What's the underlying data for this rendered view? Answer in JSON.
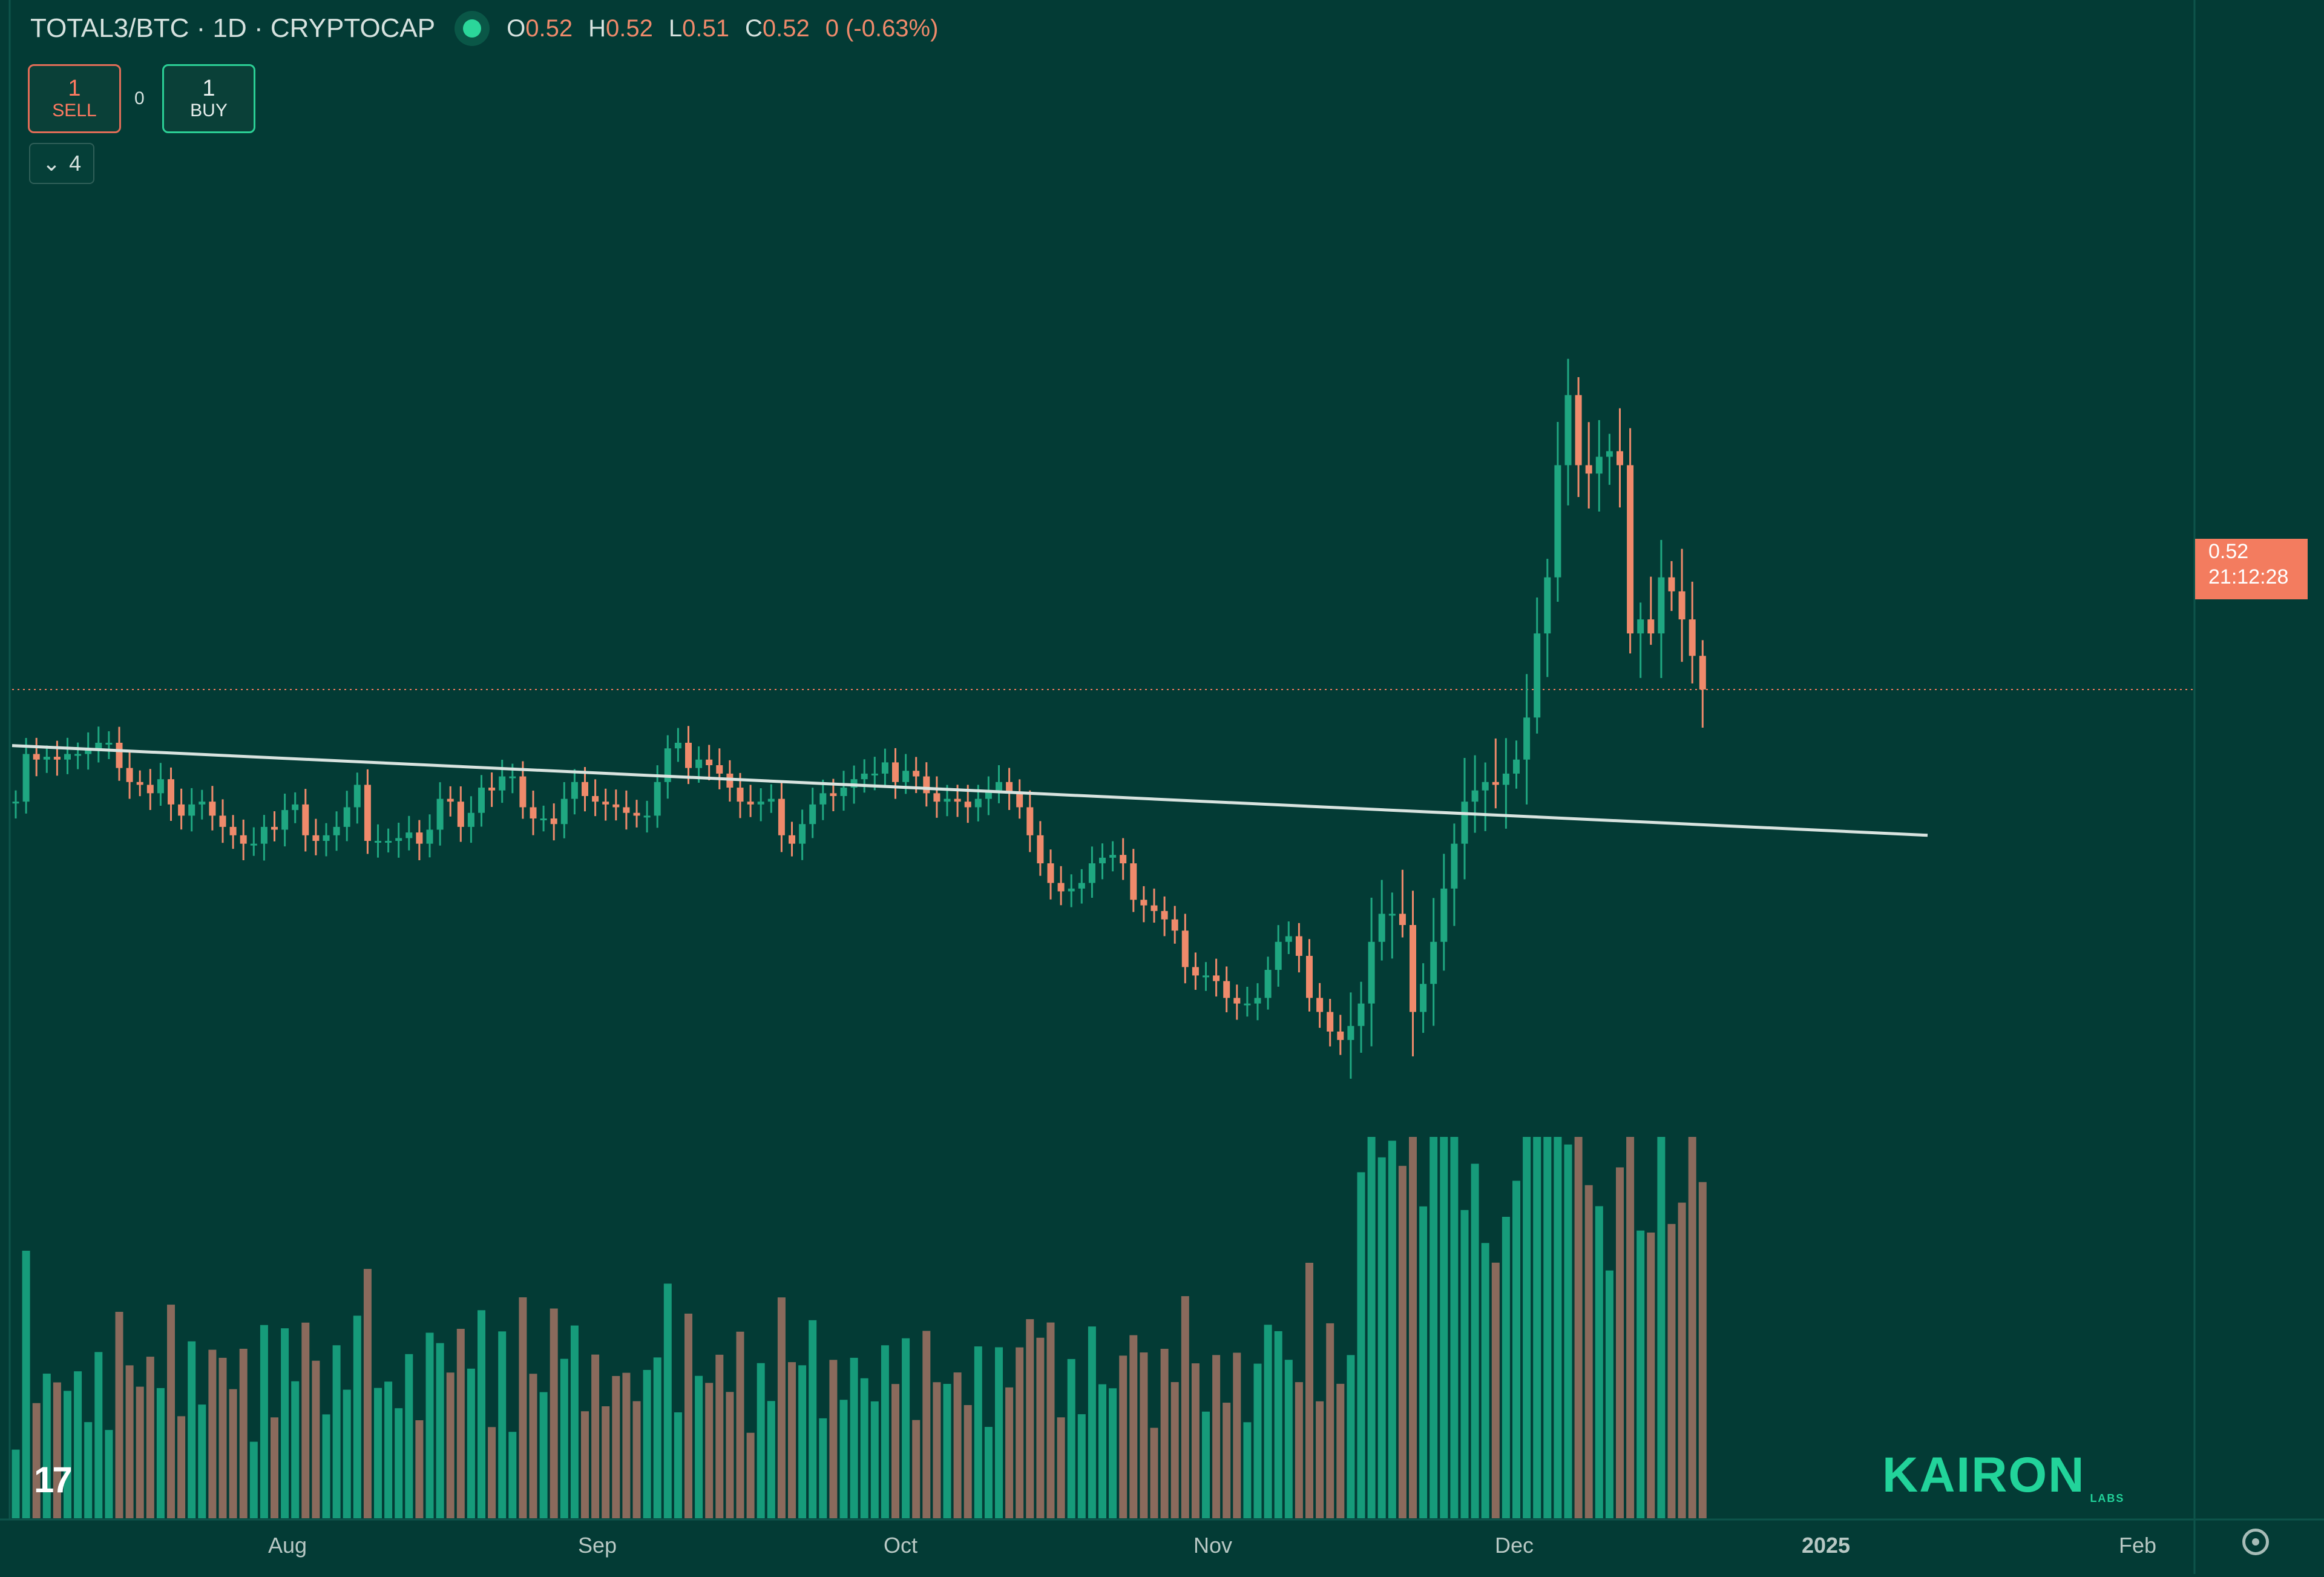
{
  "header": {
    "symbol": "TOTAL3/BTC · 1D · CRYPTOCAP",
    "open_label": "O",
    "open": "0.52",
    "high_label": "H",
    "high": "0.52",
    "low_label": "L",
    "low": "0.51",
    "close_label": "C",
    "close": "0.52",
    "change": "0 (-0.63%)"
  },
  "trade": {
    "sell_count": "1",
    "sell_label": "SELL",
    "buy_count": "1",
    "buy_label": "BUY",
    "spread": "0"
  },
  "indicators_count": "4",
  "price_tag": {
    "price": "0.52",
    "countdown": "21:12:28"
  },
  "watermark": "KAIRON",
  "watermark_sub": "LABS",
  "colors": {
    "up": "#1fa781",
    "down": "#ef8a6b",
    "volume_up": "#169b7a",
    "volume_down": "#8a6a5c",
    "background": "#033b35",
    "trendline": "#d8e3df"
  },
  "chart_data": {
    "type": "candlestick",
    "title": "TOTAL3/BTC · 1D · CRYPTOCAP",
    "x_ticks": [
      "Aug",
      "Sep",
      "Oct",
      "Nov",
      "Dec",
      "2025",
      "Feb"
    ],
    "y_range": [
      0.36,
      0.74
    ],
    "start_date": "2024-07-13",
    "last_price": 0.52,
    "close": [
      0.48,
      0.497,
      0.495,
      0.496,
      0.495,
      0.497,
      0.497,
      0.499,
      0.501,
      0.501,
      0.492,
      0.487,
      0.486,
      0.483,
      0.488,
      0.479,
      0.475,
      0.479,
      0.48,
      0.475,
      0.471,
      0.468,
      0.465,
      0.465,
      0.471,
      0.47,
      0.477,
      0.479,
      0.468,
      0.466,
      0.468,
      0.471,
      0.478,
      0.486,
      0.466,
      0.466,
      0.466,
      0.467,
      0.469,
      0.465,
      0.47,
      0.481,
      0.48,
      0.471,
      0.476,
      0.485,
      0.484,
      0.489,
      0.489,
      0.478,
      0.474,
      0.474,
      0.472,
      0.481,
      0.487,
      0.482,
      0.48,
      0.479,
      0.478,
      0.476,
      0.475,
      0.475,
      0.487,
      0.499,
      0.501,
      0.492,
      0.495,
      0.493,
      0.49,
      0.485,
      0.48,
      0.479,
      0.48,
      0.481,
      0.468,
      0.465,
      0.472,
      0.479,
      0.483,
      0.482,
      0.485,
      0.488,
      0.49,
      0.49,
      0.494,
      0.487,
      0.491,
      0.489,
      0.483,
      0.48,
      0.481,
      0.48,
      0.478,
      0.481,
      0.484,
      0.487,
      0.483,
      0.478,
      0.468,
      0.458,
      0.451,
      0.448,
      0.449,
      0.451,
      0.458,
      0.46,
      0.461,
      0.458,
      0.445,
      0.443,
      0.441,
      0.438,
      0.434,
      0.421,
      0.418,
      0.418,
      0.416,
      0.41,
      0.408,
      0.408,
      0.41,
      0.42,
      0.43,
      0.432,
      0.425,
      0.41,
      0.405,
      0.398,
      0.395,
      0.4,
      0.408,
      0.43,
      0.44,
      0.44,
      0.436,
      0.405,
      0.415,
      0.43,
      0.449,
      0.465,
      0.48,
      0.484,
      0.487,
      0.486,
      0.49,
      0.495,
      0.51,
      0.54,
      0.56,
      0.6,
      0.625,
      0.6,
      0.597,
      0.603,
      0.605,
      0.6,
      0.54,
      0.545,
      0.54,
      0.56,
      0.555,
      0.545,
      0.532,
      0.52
    ]
  }
}
